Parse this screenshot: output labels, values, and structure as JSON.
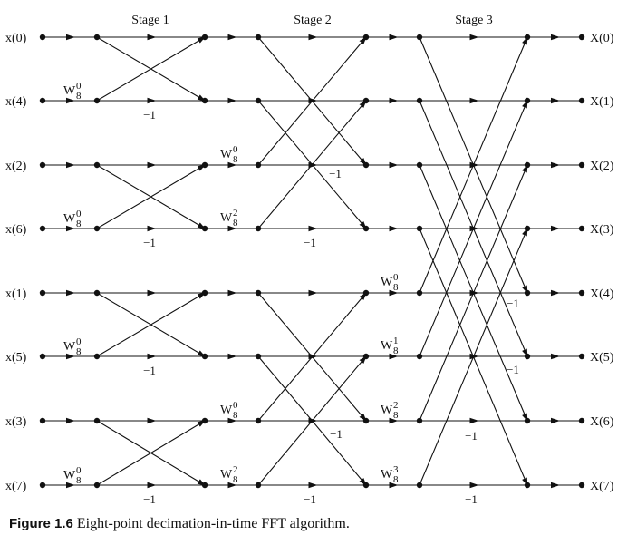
{
  "stages": [
    "Stage 1",
    "Stage 2",
    "Stage 3"
  ],
  "inputs": [
    "x(0)",
    "x(4)",
    "x(2)",
    "x(6)",
    "x(1)",
    "x(5)",
    "x(3)",
    "x(7)"
  ],
  "outputs": [
    "X(0)",
    "X(1)",
    "X(2)",
    "X(3)",
    "X(4)",
    "X(5)",
    "X(6)",
    "X(7)"
  ],
  "twiddles": {
    "stage1": [
      "0",
      "0",
      "0",
      "0"
    ],
    "stage2": [
      "0",
      "2",
      "0",
      "2"
    ],
    "stage3": [
      "0",
      "1",
      "2",
      "3"
    ],
    "base": "W",
    "sub": "8"
  },
  "minus_one": "−1",
  "caption": {
    "label": "Figure 1.6",
    "text": "Eight-point decimation-in-time FFT algorithm."
  },
  "colors": {
    "stroke": "#111111"
  }
}
